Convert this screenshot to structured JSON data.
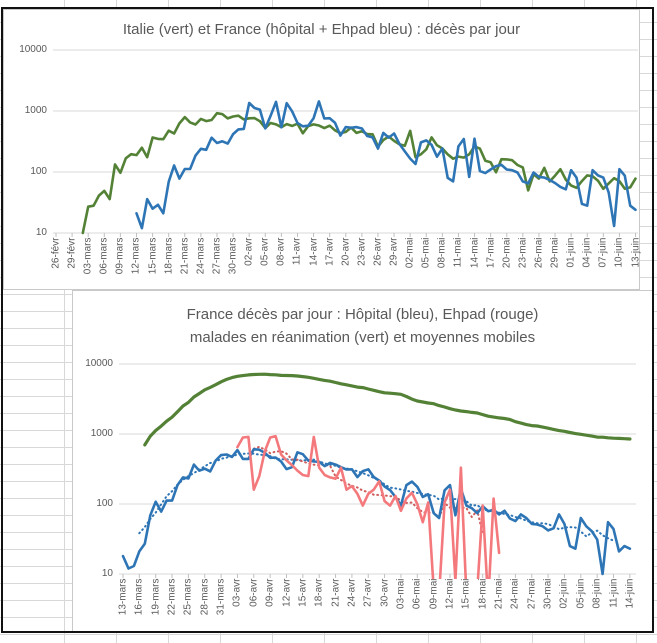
{
  "app_context": {
    "kind": "spreadsheet-with-embedded-charts"
  },
  "colors": {
    "italy_green": "#538135",
    "france_blue": "#2e75b6",
    "ehpad_pink": "#f4797d",
    "ehpad_ma_red": "#cf5b5b",
    "gridline": "#d9d9d9",
    "tick": "#c0c0c0",
    "axis_text": "#595959",
    "chart_border": "#c9c9c9",
    "frame_border": "#111111"
  },
  "chart_data": [
    {
      "id": "italy-vs-france-daily-deaths",
      "type": "line",
      "title": "Italie (vert) et France (hôpital + Ehpad bleu) : décès par jour",
      "y_scale": "log",
      "ylim": [
        10,
        10000
      ],
      "y_tick_labels": [
        "10000",
        "1000",
        "100",
        "10"
      ],
      "grid": "horizontal",
      "legend": "none (colors named in title)",
      "x_tick_interval_days": 3,
      "x_tick_labels": [
        "26-févr",
        "29-févr",
        "03-mars",
        "06-mars",
        "09-mars",
        "12-mars",
        "15-mars",
        "18-mars",
        "21-mars",
        "24-mars",
        "27-mars",
        "30-mars",
        "02-avr",
        "05-avr",
        "08-avr",
        "11-avr",
        "14-avr",
        "17-avr",
        "20-avr",
        "23-avr",
        "26-avr",
        "29-avr",
        "02-mai",
        "05-mai",
        "08-mai",
        "11-mai",
        "14-mai",
        "17-mai",
        "20-mai",
        "23-mai",
        "26-mai",
        "29-mai",
        "01-juin",
        "04-juin",
        "07-juin",
        "10-juin",
        "13-juin"
      ],
      "series": [
        {
          "name": "Italie décès par jour",
          "color": "#538135",
          "start_day": 5,
          "start_date_label": "02-mars",
          "values": [
            10,
            27,
            28,
            41,
            49,
            36,
            133,
            97,
            168,
            196,
            189,
            250,
            175,
            368,
            349,
            345,
            475,
            427,
            627,
            793,
            651,
            601,
            743,
            683,
            712,
            919,
            889,
            756,
            812,
            837,
            727,
            760,
            766,
            681,
            525,
            636,
            604,
            542,
            610,
            570,
            619,
            431,
            566,
            602,
            578,
            525,
            575,
            482,
            433,
            454,
            534,
            437,
            464,
            420,
            415,
            260,
            333,
            382,
            323,
            285,
            269,
            474,
            174,
            195,
            236,
            369,
            274,
            243,
            194,
            165,
            179,
            172,
            195,
            262,
            242,
            153,
            145,
            99,
            162,
            161,
            156,
            130,
            119,
            50,
            92,
            78,
            117,
            70,
            87,
            111,
            75,
            60,
            55,
            71,
            88,
            85,
            72,
            53,
            65,
            79,
            71,
            53,
            56,
            78
          ]
        },
        {
          "name": "France hôpital + Ehpad décès par jour",
          "color": "#2e75b6",
          "start_day": 15,
          "start_date_label": "12-mars",
          "values": [
            21,
            12,
            36,
            25,
            29,
            21,
            69,
            128,
            78,
            112,
            112,
            186,
            240,
            231,
            365,
            299,
            319,
            292,
            418,
            499,
            509,
            1355,
            1120,
            1053,
            518,
            833,
            1417,
            541,
            1341,
            987,
            635,
            561,
            574,
            762,
            1438,
            753,
            761,
            642,
            395,
            547,
            531,
            544,
            516,
            389,
            369,
            242,
            437,
            367,
            427,
            289,
            218,
            166,
            135,
            306,
            330,
            278,
            178,
            243,
            80,
            70,
            263,
            348,
            83,
            351,
            104,
            96,
            110,
            125,
            131,
            110,
            107,
            98,
            70,
            65,
            98,
            83,
            81,
            74,
            66,
            57,
            52,
            107,
            81,
            30,
            28,
            107,
            88,
            81,
            46,
            13,
            111,
            87,
            28,
            24
          ]
        }
      ]
    },
    {
      "id": "france-hospital-ehpad-reanimation",
      "type": "line",
      "title_line1": "France décès par jour : Hôpital (bleu), Ehpad (rouge)",
      "title_line2": "malades en réanimation (vert) et moyennes mobiles",
      "y_scale": "log",
      "ylim": [
        10,
        10000
      ],
      "y_tick_labels": [
        "10000",
        "1000",
        "100",
        "10"
      ],
      "grid": "horizontal",
      "legend": "none (colors named in title)",
      "x_tick_interval_days": 3,
      "x_tick_labels": [
        "13-mars",
        "16-mars",
        "19-mars",
        "22-mars",
        "25-mars",
        "28-mars",
        "31-mars",
        "03-avr",
        "06-avr",
        "09-avr",
        "12-avr",
        "15-avr",
        "18-avr",
        "21-avr",
        "24-avr",
        "27-avr",
        "30-avr",
        "03-mai",
        "06-mai",
        "09-mai",
        "12-mai",
        "15-mai",
        "18-mai",
        "21-mai",
        "24-mai",
        "27-mai",
        "30-mai",
        "02-juin",
        "05-juin",
        "08-juin",
        "11-juin",
        "14-juin"
      ],
      "moving_average_note": "dotted lines are moving averages of hospital (blue) and Ehpad (red) series",
      "series": [
        {
          "name": "Malades en réanimation",
          "color": "#538135",
          "start_day": 4,
          "start_date_label": "17-mars",
          "values": [
            699,
            931,
            1122,
            1297,
            1525,
            1746,
            2080,
            2516,
            2827,
            3375,
            3787,
            4273,
            4632,
            5056,
            5565,
            6017,
            6399,
            6662,
            6838,
            6978,
            7072,
            7131,
            7148,
            7066,
            7004,
            6883,
            6845,
            6821,
            6730,
            6599,
            6457,
            6248,
            6027,
            5833,
            5683,
            5433,
            5218,
            5053,
            4870,
            4682,
            4608,
            4387,
            4207,
            4019,
            3878,
            3827,
            3770,
            3696,
            3430,
            3147,
            2961,
            2868,
            2776,
            2712,
            2542,
            2428,
            2299,
            2203,
            2132,
            2087,
            2036,
            1998,
            1894,
            1794,
            1745,
            1701,
            1665,
            1609,
            1501,
            1429,
            1361,
            1319,
            1302,
            1253,
            1209,
            1163,
            1120,
            1094,
            1049,
            1014,
            989,
            961,
            932,
            904,
            899,
            883,
            871,
            864,
            857,
            847
          ]
        },
        {
          "name": "Hôpital décès par jour",
          "color": "#2e75b6",
          "moving_average": true,
          "ma_color": "#2e75b6",
          "start_day": 0,
          "start_date_label": "13-mars",
          "values": [
            18,
            12,
            13,
            21,
            27,
            69,
            108,
            78,
            112,
            112,
            186,
            240,
            231,
            365,
            299,
            319,
            292,
            418,
            499,
            509,
            471,
            588,
            441,
            441,
            605,
            597,
            541,
            457,
            460,
            405,
            315,
            335,
            547,
            514,
            417,
            405,
            401,
            348,
            387,
            366,
            336,
            311,
            313,
            242,
            295,
            313,
            243,
            216,
            178,
            158,
            126,
            95,
            186,
            209,
            176,
            126,
            138,
            74,
            63,
            157,
            186,
            69,
            166,
            95,
            87,
            74,
            93,
            79,
            83,
            71,
            80,
            62,
            57,
            71,
            63,
            52,
            51,
            48,
            42,
            45,
            71,
            52,
            25,
            23,
            63,
            48,
            41,
            31,
            10,
            55,
            44,
            21,
            25,
            23
          ]
        },
        {
          "name": "Ehpad décès par jour",
          "color": "#f4797d",
          "moving_average": true,
          "ma_color": "#cf5b5b",
          "start_day": 21,
          "start_date_label": "03-avr",
          "values": [
            650,
            890,
            910,
            160,
            250,
            560,
            890,
            930,
            510,
            420,
            360,
            300,
            260,
            250,
            910,
            330,
            260,
            240,
            230,
            330,
            160,
            180,
            140,
            95,
            140,
            160,
            210,
            110,
            95,
            130,
            80,
            120,
            145,
            100,
            55,
            105,
            6,
            5,
            106,
            160,
            8,
            330,
            5,
            8,
            6,
            95,
            4,
            120,
            20
          ]
        }
      ]
    }
  ]
}
